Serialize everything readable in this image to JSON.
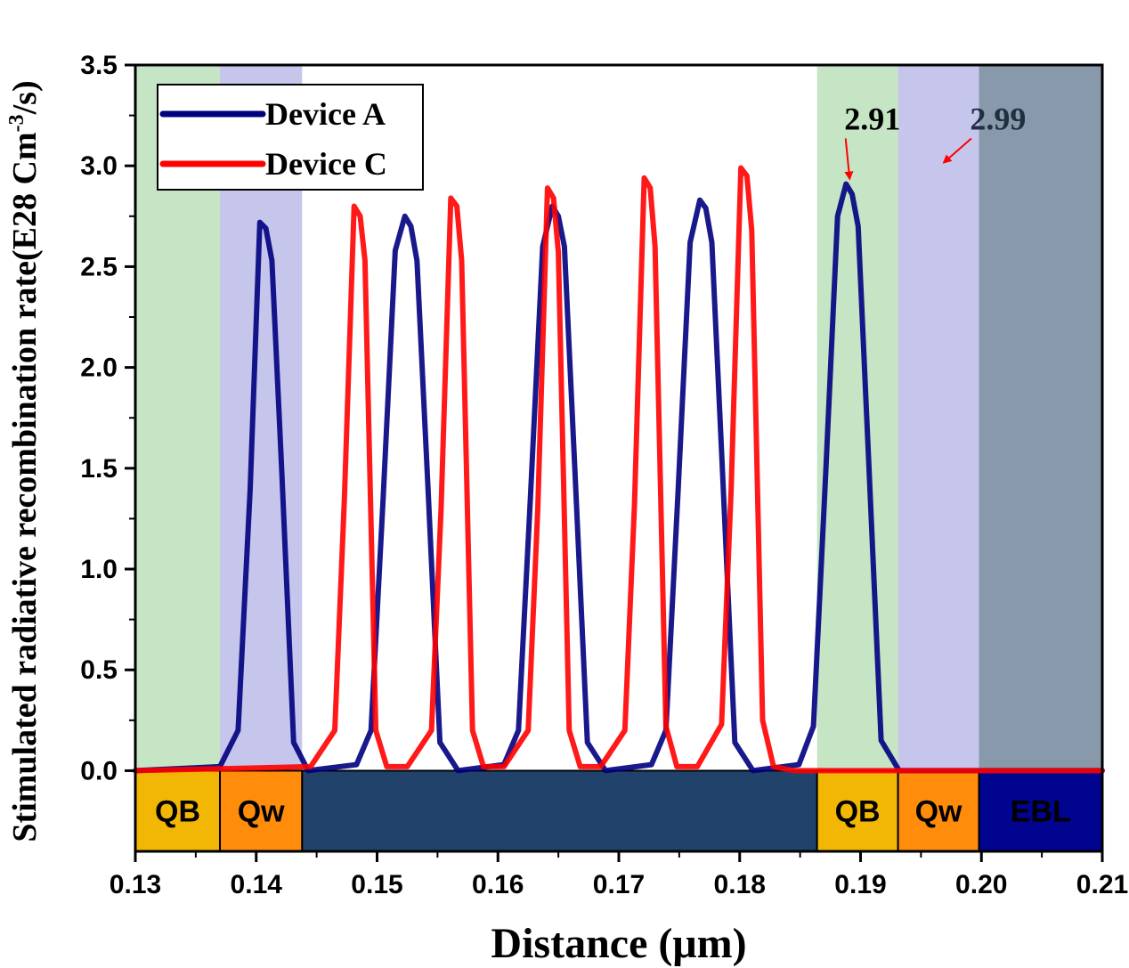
{
  "chart_data": {
    "type": "line",
    "title": "",
    "xlabel": "Distance (μm)",
    "ylabel_main": "Stimulated radiative recombination rate(E28 Cm",
    "ylabel_sup": "-3",
    "ylabel_end": "/s)",
    "xlim": [
      0.13,
      0.21
    ],
    "ylim": [
      -0.4,
      3.5
    ],
    "grid": false,
    "legend_placement": "top-left",
    "x_ticks": [
      0.13,
      0.14,
      0.15,
      0.16,
      0.17,
      0.18,
      0.19,
      0.2,
      0.21
    ],
    "x_tick_labels": [
      "0.13",
      "0.14",
      "0.15",
      "0.16",
      "0.17",
      "0.18",
      "0.19",
      "0.20",
      "0.21"
    ],
    "y_ticks": [
      0.0,
      0.5,
      1.0,
      1.5,
      2.0,
      2.5,
      3.0,
      3.5
    ],
    "y_tick_labels": [
      "0.0",
      "0.5",
      "1.0",
      "1.5",
      "2.0",
      "2.5",
      "3.0",
      "3.5"
    ],
    "background_regions": [
      {
        "x0": 0.13,
        "x1": 0.137,
        "color": "#c5e5c5"
      },
      {
        "x0": 0.137,
        "x1": 0.1438,
        "color": "#c6c6ec"
      },
      {
        "x0": 0.1864,
        "x1": 0.1931,
        "color": "#c5e5c5"
      },
      {
        "x0": 0.1931,
        "x1": 0.1998,
        "color": "#c6c6ec"
      },
      {
        "x0": 0.1998,
        "x1": 0.21,
        "color": "#8799ab"
      }
    ],
    "layer_bar": {
      "y0": -0.4,
      "y1": 0.0,
      "segments": [
        {
          "x0": 0.13,
          "x1": 0.137,
          "label": "QB",
          "color": "#f2b705"
        },
        {
          "x0": 0.137,
          "x1": 0.1438,
          "label": "Qw",
          "color": "#ff8c0a"
        },
        {
          "x0": 0.1438,
          "x1": 0.1864,
          "label": "",
          "color": "#21436b"
        },
        {
          "x0": 0.1864,
          "x1": 0.1931,
          "label": "QB",
          "color": "#f2b705"
        },
        {
          "x0": 0.1931,
          "x1": 0.1998,
          "label": "Qw",
          "color": "#ff8c0a"
        },
        {
          "x0": 0.1998,
          "x1": 0.21,
          "label": "EBL",
          "color": "#00048f"
        }
      ]
    },
    "series": [
      {
        "name": "Device A",
        "color": "#000080",
        "x": [
          0.13,
          0.137,
          0.1385,
          0.1395,
          0.1403,
          0.1408,
          0.1413,
          0.1421,
          0.1431,
          0.1443,
          0.1483,
          0.1495,
          0.1505,
          0.1515,
          0.1523,
          0.1528,
          0.1533,
          0.1542,
          0.1552,
          0.1567,
          0.1605,
          0.1617,
          0.1627,
          0.1637,
          0.1645,
          0.165,
          0.1655,
          0.1664,
          0.1674,
          0.1689,
          0.1727,
          0.1739,
          0.1749,
          0.1759,
          0.1767,
          0.1772,
          0.1777,
          0.1786,
          0.1796,
          0.1811,
          0.1849,
          0.1861,
          0.1871,
          0.1881,
          0.1888,
          0.1893,
          0.1898,
          0.1907,
          0.1917,
          0.1932,
          0.21
        ],
        "y": [
          0.0,
          0.02,
          0.2,
          1.4,
          2.72,
          2.69,
          2.53,
          1.5,
          0.14,
          0.0,
          0.03,
          0.2,
          1.35,
          2.58,
          2.75,
          2.7,
          2.53,
          1.42,
          0.14,
          0.0,
          0.03,
          0.2,
          1.37,
          2.6,
          2.8,
          2.75,
          2.6,
          1.45,
          0.14,
          0.0,
          0.03,
          0.2,
          1.38,
          2.62,
          2.83,
          2.79,
          2.62,
          1.46,
          0.14,
          0.0,
          0.03,
          0.22,
          1.45,
          2.75,
          2.91,
          2.86,
          2.7,
          1.5,
          0.15,
          0.0,
          0.0
        ]
      },
      {
        "name": "Device C",
        "color": "#ff0000",
        "x": [
          0.13,
          0.1445,
          0.1465,
          0.1473,
          0.1481,
          0.1486,
          0.149,
          0.1499,
          0.1508,
          0.1525,
          0.1545,
          0.1553,
          0.1561,
          0.1566,
          0.157,
          0.1579,
          0.1588,
          0.1605,
          0.1625,
          0.1633,
          0.1641,
          0.1646,
          0.165,
          0.1659,
          0.1668,
          0.1685,
          0.1705,
          0.1713,
          0.1721,
          0.1726,
          0.173,
          0.1739,
          0.1748,
          0.1765,
          0.1785,
          0.1793,
          0.1801,
          0.1806,
          0.181,
          0.1819,
          0.1828,
          0.1845,
          0.1865,
          0.1873,
          0.1881,
          0.1886,
          0.189,
          0.1899,
          0.1908,
          0.1925,
          0.21
        ],
        "y": [
          0.0,
          0.02,
          0.2,
          1.35,
          2.8,
          2.75,
          2.53,
          0.2,
          0.02,
          0.02,
          0.2,
          1.3,
          2.84,
          2.8,
          2.53,
          0.2,
          0.02,
          0.02,
          0.2,
          1.3,
          2.89,
          2.84,
          2.57,
          0.2,
          0.02,
          0.02,
          0.2,
          1.32,
          2.94,
          2.89,
          2.6,
          0.22,
          0.02,
          0.02,
          0.23,
          1.4,
          2.99,
          2.95,
          2.68,
          0.25,
          0.02,
          0.0,
          0.0,
          0.0,
          0.0,
          0.0,
          0.0,
          0.0,
          0.0,
          0.0,
          0.0
        ]
      }
    ],
    "annotations": [
      {
        "label": "2.91",
        "point": [
          0.1888,
          2.91
        ],
        "text_at": [
          0.1895,
          3.18
        ]
      },
      {
        "label": "2.99",
        "point": [
          0.1966,
          2.99
        ],
        "text_at": [
          0.1999,
          3.18
        ]
      }
    ]
  }
}
